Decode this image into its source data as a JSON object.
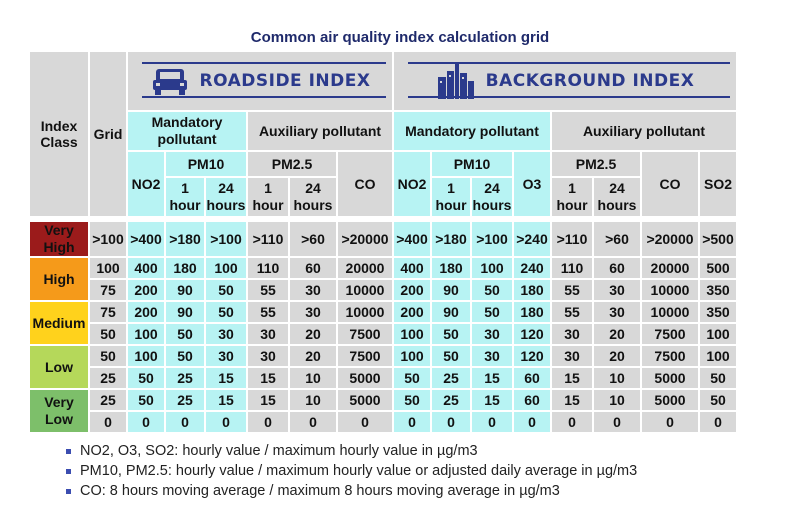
{
  "caption": "Common air quality index calculation grid",
  "headers": {
    "index_class": "Index Class",
    "grid": "Grid",
    "roadside": "ROADSIDE INDEX",
    "background": "BACKGROUND INDEX",
    "mandatory": "Mandatory pollutant",
    "auxiliary": "Auxiliary pollutant",
    "no2": "NO2",
    "pm10": "PM10",
    "pm25": "PM2.5",
    "co": "CO",
    "o3": "O3",
    "so2": "SO2",
    "one_hour": "1 hour",
    "twentyfour_hours": "24 hours"
  },
  "classes": [
    {
      "label": "Very High",
      "color": "#9b1b1b"
    },
    {
      "label": "High",
      "color": "#f59a1a"
    },
    {
      "label": "Medium",
      "color": "#ffd21c"
    },
    {
      "label": "Low",
      "color": "#b5d85a"
    },
    {
      "label": "Very Low",
      "color": "#7dbf6a"
    }
  ],
  "rows": [
    [
      ">100",
      ">400",
      ">180",
      ">100",
      ">110",
      ">60",
      ">20000",
      ">400",
      ">180",
      ">100",
      ">240",
      ">110",
      ">60",
      ">20000",
      ">500"
    ],
    [
      "100",
      "400",
      "180",
      "100",
      "110",
      "60",
      "20000",
      "400",
      "180",
      "100",
      "240",
      "110",
      "60",
      "20000",
      "500"
    ],
    [
      "75",
      "200",
      "90",
      "50",
      "55",
      "30",
      "10000",
      "200",
      "90",
      "50",
      "180",
      "55",
      "30",
      "10000",
      "350"
    ],
    [
      "75",
      "200",
      "90",
      "50",
      "55",
      "30",
      "10000",
      "200",
      "90",
      "50",
      "180",
      "55",
      "30",
      "10000",
      "350"
    ],
    [
      "50",
      "100",
      "50",
      "30",
      "30",
      "20",
      "7500",
      "100",
      "50",
      "30",
      "120",
      "30",
      "20",
      "7500",
      "100"
    ],
    [
      "50",
      "100",
      "50",
      "30",
      "30",
      "20",
      "7500",
      "100",
      "50",
      "30",
      "120",
      "30",
      "20",
      "7500",
      "100"
    ],
    [
      "25",
      "50",
      "25",
      "15",
      "15",
      "10",
      "5000",
      "50",
      "25",
      "15",
      "60",
      "15",
      "10",
      "5000",
      "50"
    ],
    [
      "25",
      "50",
      "25",
      "15",
      "15",
      "10",
      "5000",
      "50",
      "25",
      "15",
      "60",
      "15",
      "10",
      "5000",
      "50"
    ],
    [
      "0",
      "0",
      "0",
      "0",
      "0",
      "0",
      "0",
      "0",
      "0",
      "0",
      "0",
      "0",
      "0",
      "0",
      "0"
    ]
  ],
  "notes": [
    "NO2, O3, SO2: hourly value / maximum hourly value in µg/m3",
    "PM10, PM2.5: hourly value / maximum hourly value or adjusted daily average in µg/m3",
    "CO: 8 hours moving average / maximum 8 hours moving average in µg/m3"
  ],
  "icons": {
    "roadside": "car-icon",
    "background": "city-skyline-icon"
  }
}
